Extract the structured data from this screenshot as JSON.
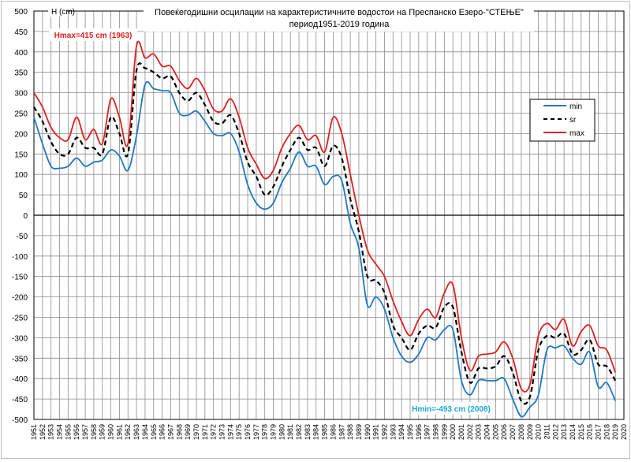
{
  "chart_data": {
    "type": "line",
    "title": "Повеќегодишни осцилации на карактеристичните водостои на Преспанско Езеро-\"СТЕЊЕ\"",
    "subtitle": "период1951-2019  година",
    "ylabel": "H (cm)",
    "xlabel": "",
    "ylim": [
      -500,
      500
    ],
    "ystep": 50,
    "x_ticks": [
      1951,
      1952,
      1953,
      1954,
      1955,
      1956,
      1957,
      1958,
      1959,
      1960,
      1961,
      1962,
      1963,
      1964,
      1965,
      1966,
      1967,
      1968,
      1969,
      1970,
      1971,
      1972,
      1973,
      1974,
      1975,
      1976,
      1977,
      1978,
      1979,
      1980,
      1981,
      1982,
      1983,
      1984,
      1985,
      1986,
      1987,
      1988,
      1989,
      1990,
      1991,
      1992,
      1993,
      1994,
      1995,
      1996,
      1997,
      1998,
      1999,
      2000,
      2001,
      2002,
      2003,
      2004,
      2005,
      2006,
      2007,
      2008,
      2009,
      2010,
      2011,
      2012,
      2013,
      2014,
      2015,
      2016,
      2017,
      2018,
      2019,
      2020
    ],
    "x": [
      1951,
      1952,
      1953,
      1954,
      1955,
      1956,
      1957,
      1958,
      1959,
      1960,
      1961,
      1962,
      1963,
      1964,
      1965,
      1966,
      1967,
      1968,
      1969,
      1970,
      1971,
      1972,
      1973,
      1974,
      1975,
      1976,
      1977,
      1978,
      1979,
      1980,
      1981,
      1982,
      1983,
      1984,
      1985,
      1986,
      1987,
      1988,
      1989,
      1990,
      1991,
      1992,
      1993,
      1994,
      1995,
      1996,
      1997,
      1998,
      1999,
      2000,
      2001,
      2002,
      2003,
      2004,
      2005,
      2006,
      2007,
      2008,
      2009,
      2010,
      2011,
      2012,
      2013,
      2014,
      2015,
      2016,
      2017,
      2018,
      2019
    ],
    "grid": true,
    "legend_position": "right",
    "series": [
      {
        "name": "min",
        "color": "#1f77c4",
        "dash": false,
        "values": [
          240,
          175,
          120,
          115,
          120,
          140,
          120,
          130,
          135,
          160,
          145,
          110,
          195,
          320,
          310,
          305,
          300,
          250,
          245,
          255,
          230,
          200,
          195,
          200,
          155,
          75,
          30,
          15,
          30,
          80,
          115,
          155,
          120,
          120,
          75,
          95,
          85,
          -20,
          -80,
          -220,
          -200,
          -230,
          -300,
          -345,
          -360,
          -340,
          -300,
          -305,
          -280,
          -280,
          -405,
          -440,
          -405,
          -405,
          -405,
          -400,
          -450,
          -493,
          -470,
          -440,
          -330,
          -325,
          -320,
          -350,
          -365,
          -335,
          -420,
          -410,
          -455
        ]
      },
      {
        "name": "sr",
        "color": "#000000",
        "dash": true,
        "values": [
          265,
          230,
          180,
          150,
          150,
          190,
          165,
          165,
          150,
          240,
          200,
          150,
          355,
          360,
          350,
          335,
          340,
          300,
          280,
          300,
          270,
          230,
          225,
          245,
          200,
          130,
          95,
          50,
          70,
          120,
          160,
          190,
          160,
          165,
          120,
          170,
          140,
          40,
          -40,
          -150,
          -160,
          -190,
          -270,
          -300,
          -330,
          -290,
          -270,
          -275,
          -225,
          -225,
          -335,
          -410,
          -375,
          -375,
          -370,
          -345,
          -385,
          -455,
          -445,
          -330,
          -295,
          -300,
          -290,
          -340,
          -330,
          -305,
          -365,
          -370,
          -405
        ]
      },
      {
        "name": "max",
        "color": "#e02020",
        "dash": false,
        "values": [
          300,
          265,
          215,
          190,
          185,
          240,
          185,
          210,
          175,
          285,
          240,
          175,
          415,
          385,
          395,
          365,
          365,
          330,
          310,
          335,
          305,
          260,
          255,
          285,
          240,
          165,
          125,
          90,
          110,
          165,
          200,
          220,
          185,
          195,
          155,
          240,
          200,
          100,
          0,
          -85,
          -120,
          -150,
          -210,
          -260,
          -295,
          -255,
          -230,
          -250,
          -190,
          -170,
          -300,
          -380,
          -345,
          -340,
          -335,
          -310,
          -350,
          -425,
          -415,
          -295,
          -265,
          -280,
          -255,
          -320,
          -285,
          -270,
          -320,
          -330,
          -385
        ]
      }
    ],
    "annotations": [
      {
        "text": "Hmax=415 cm (1963)",
        "color": "#e02020",
        "x": 1963,
        "y": 415
      },
      {
        "text": "Hmin=-493 cm (2008)",
        "color": "#18a8d8",
        "x": 2008,
        "y": -493
      }
    ]
  }
}
